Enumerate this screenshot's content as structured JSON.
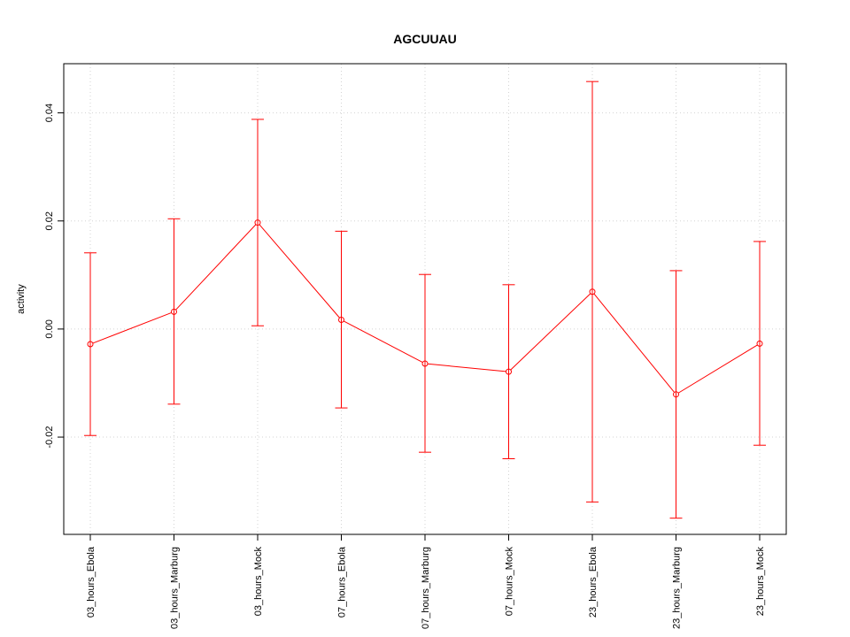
{
  "chart_data": {
    "type": "line",
    "title": "AGCUUAU",
    "xlabel": "",
    "ylabel": "activity",
    "categories": [
      "03_hours_Ebola",
      "03_hours_Marburg",
      "03_hours_Mock",
      "07_hours_Ebola",
      "07_hours_Marburg",
      "07_hours_Mock",
      "23_hours_Ebola",
      "23_hours_Marburg",
      "23_hours_Mock"
    ],
    "series": [
      {
        "values": [
          -0.0028,
          0.0032,
          0.0197,
          0.0017,
          -0.0064,
          -0.0079,
          0.0069,
          -0.0121,
          -0.0027
        ],
        "upper": [
          0.0141,
          0.0204,
          0.0388,
          0.0181,
          0.0101,
          0.0082,
          0.0458,
          0.0108,
          0.0162
        ],
        "lower": [
          -0.0197,
          -0.0139,
          0.0006,
          -0.0146,
          -0.0228,
          -0.024,
          -0.032,
          -0.035,
          -0.0215
        ]
      }
    ],
    "yticks": [
      -0.02,
      0.0,
      0.02,
      0.04
    ],
    "ytick_labels": [
      "-0.02",
      "0.00",
      "0.02",
      "0.04"
    ],
    "ylim": [
      -0.038,
      0.0491
    ],
    "grid": true,
    "color": "#ff0000",
    "grid_color": "#d3d3d3"
  }
}
